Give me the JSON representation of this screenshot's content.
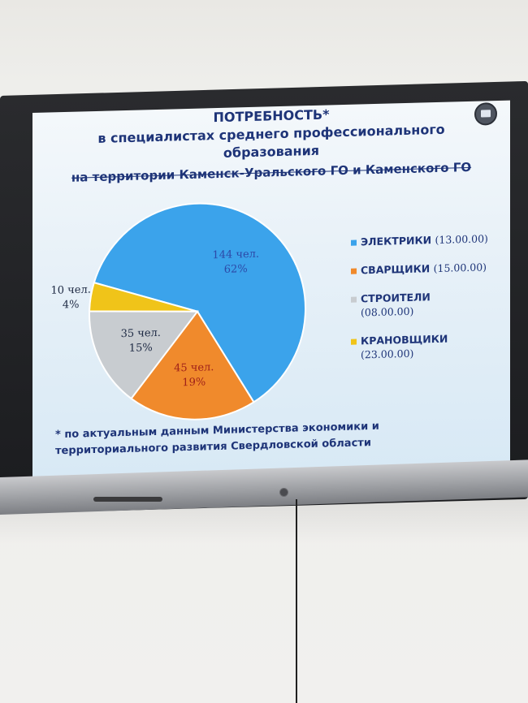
{
  "slide": {
    "title_line1": "ПОТРЕБНОСТЬ*",
    "title_line2": "в специалистах среднего профессионального",
    "title_line3": "образования",
    "title_line4": "на территории Каменск-Уральского ГО и Каменского ГО",
    "footnote_line1": "* по актуальным данным Министерства экономики и",
    "footnote_line2": "территориального развития Свердловской области"
  },
  "chart_data": {
    "type": "pie",
    "slices": [
      {
        "name": "ЭЛЕКТРИКИ",
        "code": "(13.00.00)",
        "count_label": "144 чел.",
        "percent_label": "62%",
        "value": 144,
        "color": "#3ba3eb"
      },
      {
        "name": "СВАРЩИКИ",
        "code": "(15.00.00)",
        "count_label": "45 чел.",
        "percent_label": "19%",
        "value": 45,
        "color": "#f08a2c"
      },
      {
        "name": "СТРОИТЕЛИ",
        "code": "(08.00.00)",
        "count_label": "35 чел.",
        "percent_label": "15%",
        "value": 35,
        "color": "#c8ccd0"
      },
      {
        "name": "КРАНОВЩИКИ",
        "code": "(23.00.00)",
        "count_label": "10 чел.",
        "percent_label": "4%",
        "value": 10,
        "color": "#f0c419"
      }
    ]
  }
}
